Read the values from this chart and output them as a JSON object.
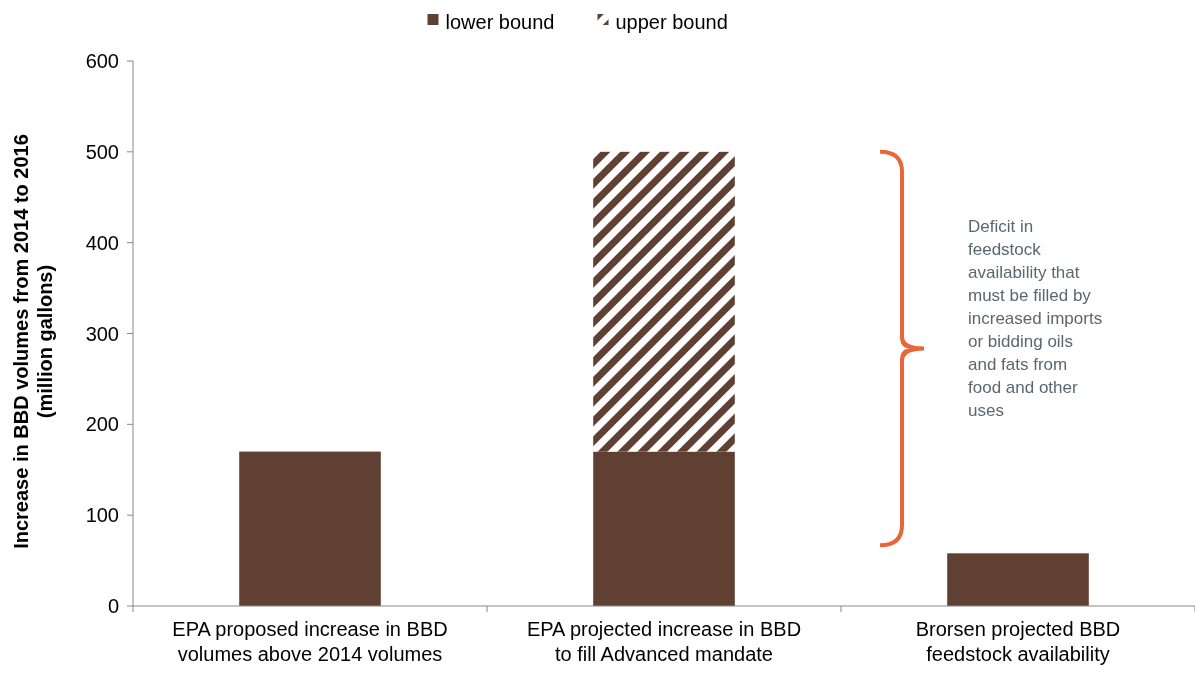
{
  "chart_data": {
    "type": "bar",
    "stacked": true,
    "categories": [
      "EPA proposed increase in BBD volumes above 2014 volumes",
      "EPA projected increase in BBD to fill Advanced mandate",
      "Brorsen projected BBD feedstock availability"
    ],
    "series": [
      {
        "name": "lower bound",
        "color": "#5f4033",
        "values": [
          170,
          170,
          58
        ]
      },
      {
        "name": "upper bound",
        "color": "#5f4033",
        "values": [
          null,
          330,
          null
        ]
      }
    ],
    "ylabel": "Increase in BBD volumes from 2014 to 2016 (million gallons)",
    "ylim": [
      0,
      600
    ],
    "yticks": [
      0,
      100,
      200,
      300,
      400,
      500,
      600
    ],
    "legend": "top",
    "grid": false,
    "annotations": [
      "Deficit in feedstock availability that must be filled by increased imports or bidding oils and fats from food and other uses"
    ]
  }
}
